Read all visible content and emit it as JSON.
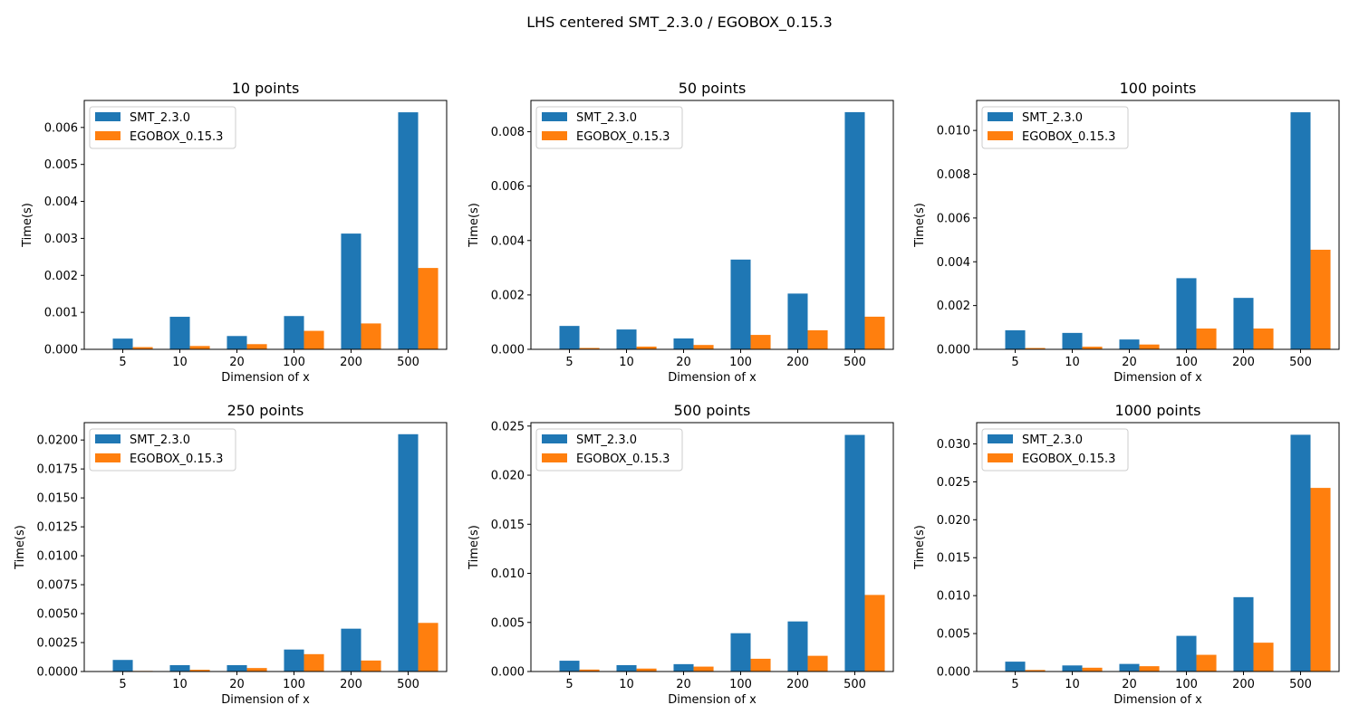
{
  "figure": {
    "suptitle": "LHS centered SMT_2.3.0 / EGOBOX_0.15.3"
  },
  "colors": {
    "SMT_2.3.0": "#1f77b4",
    "EGOBOX_0.15.3": "#ff7f0e"
  },
  "chart_data": [
    {
      "type": "bar",
      "title": "10 points",
      "xlabel": "Dimension of x",
      "ylabel": "Time(s)",
      "categories": [
        "5",
        "10",
        "20",
        "100",
        "200",
        "500"
      ],
      "ylim": [
        0,
        0.00673
      ],
      "yticks": [
        "0.000",
        "0.001",
        "0.002",
        "0.003",
        "0.004",
        "0.005",
        "0.006"
      ],
      "ytick_values": [
        0,
        0.001,
        0.002,
        0.003,
        0.004,
        0.005,
        0.006
      ],
      "legend_position": "top-left",
      "series": [
        {
          "name": "SMT_2.3.0",
          "values": [
            0.00029,
            0.00088,
            0.00036,
            0.0009,
            0.00313,
            0.00641
          ]
        },
        {
          "name": "EGOBOX_0.15.3",
          "values": [
            6e-05,
            9e-05,
            0.00014,
            0.0005,
            0.0007,
            0.0022
          ]
        }
      ]
    },
    {
      "type": "bar",
      "title": "50 points",
      "xlabel": "Dimension of x",
      "ylabel": "Time(s)",
      "categories": [
        "5",
        "10",
        "20",
        "100",
        "200",
        "500"
      ],
      "ylim": [
        0,
        0.00915
      ],
      "yticks": [
        "0.000",
        "0.002",
        "0.004",
        "0.006",
        "0.008"
      ],
      "ytick_values": [
        0,
        0.002,
        0.004,
        0.006,
        0.008
      ],
      "legend_position": "top-left",
      "series": [
        {
          "name": "SMT_2.3.0",
          "values": [
            0.00086,
            0.00073,
            0.0004,
            0.0033,
            0.00205,
            0.00872
          ]
        },
        {
          "name": "EGOBOX_0.15.3",
          "values": [
            5e-05,
            0.0001,
            0.00016,
            0.00053,
            0.0007,
            0.0012
          ]
        }
      ]
    },
    {
      "type": "bar",
      "title": "100 points",
      "xlabel": "Dimension of x",
      "ylabel": "Time(s)",
      "categories": [
        "5",
        "10",
        "20",
        "100",
        "200",
        "500"
      ],
      "ylim": [
        0,
        0.01137
      ],
      "yticks": [
        "0.000",
        "0.002",
        "0.004",
        "0.006",
        "0.008",
        "0.010"
      ],
      "ytick_values": [
        0,
        0.002,
        0.004,
        0.006,
        0.008,
        0.01
      ],
      "legend_position": "top-left",
      "series": [
        {
          "name": "SMT_2.3.0",
          "values": [
            0.00087,
            0.00075,
            0.00045,
            0.00325,
            0.00235,
            0.01083
          ]
        },
        {
          "name": "EGOBOX_0.15.3",
          "values": [
            6e-05,
            0.00012,
            0.00022,
            0.00095,
            0.00095,
            0.00455
          ]
        }
      ]
    },
    {
      "type": "bar",
      "title": "250 points",
      "xlabel": "Dimension of x",
      "ylabel": "Time(s)",
      "categories": [
        "5",
        "10",
        "20",
        "100",
        "200",
        "500"
      ],
      "ylim": [
        0,
        0.0215
      ],
      "yticks": [
        "0.0000",
        "0.0025",
        "0.0050",
        "0.0075",
        "0.0100",
        "0.0125",
        "0.0150",
        "0.0175",
        "0.0200"
      ],
      "ytick_values": [
        0,
        0.0025,
        0.005,
        0.0075,
        0.01,
        0.0125,
        0.015,
        0.0175,
        0.02
      ],
      "legend_position": "top-left",
      "series": [
        {
          "name": "SMT_2.3.0",
          "values": [
            0.001,
            0.00055,
            0.00055,
            0.0019,
            0.0037,
            0.0205
          ]
        },
        {
          "name": "EGOBOX_0.15.3",
          "values": [
            5e-05,
            0.00015,
            0.0003,
            0.0015,
            0.00095,
            0.0042
          ]
        }
      ]
    },
    {
      "type": "bar",
      "title": "500 points",
      "xlabel": "Dimension of x",
      "ylabel": "Time(s)",
      "categories": [
        "5",
        "10",
        "20",
        "100",
        "200",
        "500"
      ],
      "ylim": [
        0,
        0.02535
      ],
      "yticks": [
        "0.000",
        "0.005",
        "0.010",
        "0.015",
        "0.020",
        "0.025"
      ],
      "ytick_values": [
        0,
        0.005,
        0.01,
        0.015,
        0.02,
        0.025
      ],
      "legend_position": "top-left",
      "series": [
        {
          "name": "SMT_2.3.0",
          "values": [
            0.0011,
            0.00065,
            0.00075,
            0.0039,
            0.0051,
            0.0241
          ]
        },
        {
          "name": "EGOBOX_0.15.3",
          "values": [
            0.0002,
            0.0003,
            0.0005,
            0.0013,
            0.0016,
            0.0078
          ]
        }
      ]
    },
    {
      "type": "bar",
      "title": "1000 points",
      "xlabel": "Dimension of x",
      "ylabel": "Time(s)",
      "categories": [
        "5",
        "10",
        "20",
        "100",
        "200",
        "500"
      ],
      "ylim": [
        0,
        0.0328
      ],
      "yticks": [
        "0.000",
        "0.005",
        "0.010",
        "0.015",
        "0.020",
        "0.025",
        "0.030"
      ],
      "ytick_values": [
        0,
        0.005,
        0.01,
        0.015,
        0.02,
        0.025,
        0.03
      ],
      "legend_position": "top-left",
      "series": [
        {
          "name": "SMT_2.3.0",
          "values": [
            0.0013,
            0.0008,
            0.001,
            0.0047,
            0.0098,
            0.0312
          ]
        },
        {
          "name": "EGOBOX_0.15.3",
          "values": [
            0.0002,
            0.0005,
            0.0007,
            0.0022,
            0.0038,
            0.0242
          ]
        }
      ]
    }
  ]
}
